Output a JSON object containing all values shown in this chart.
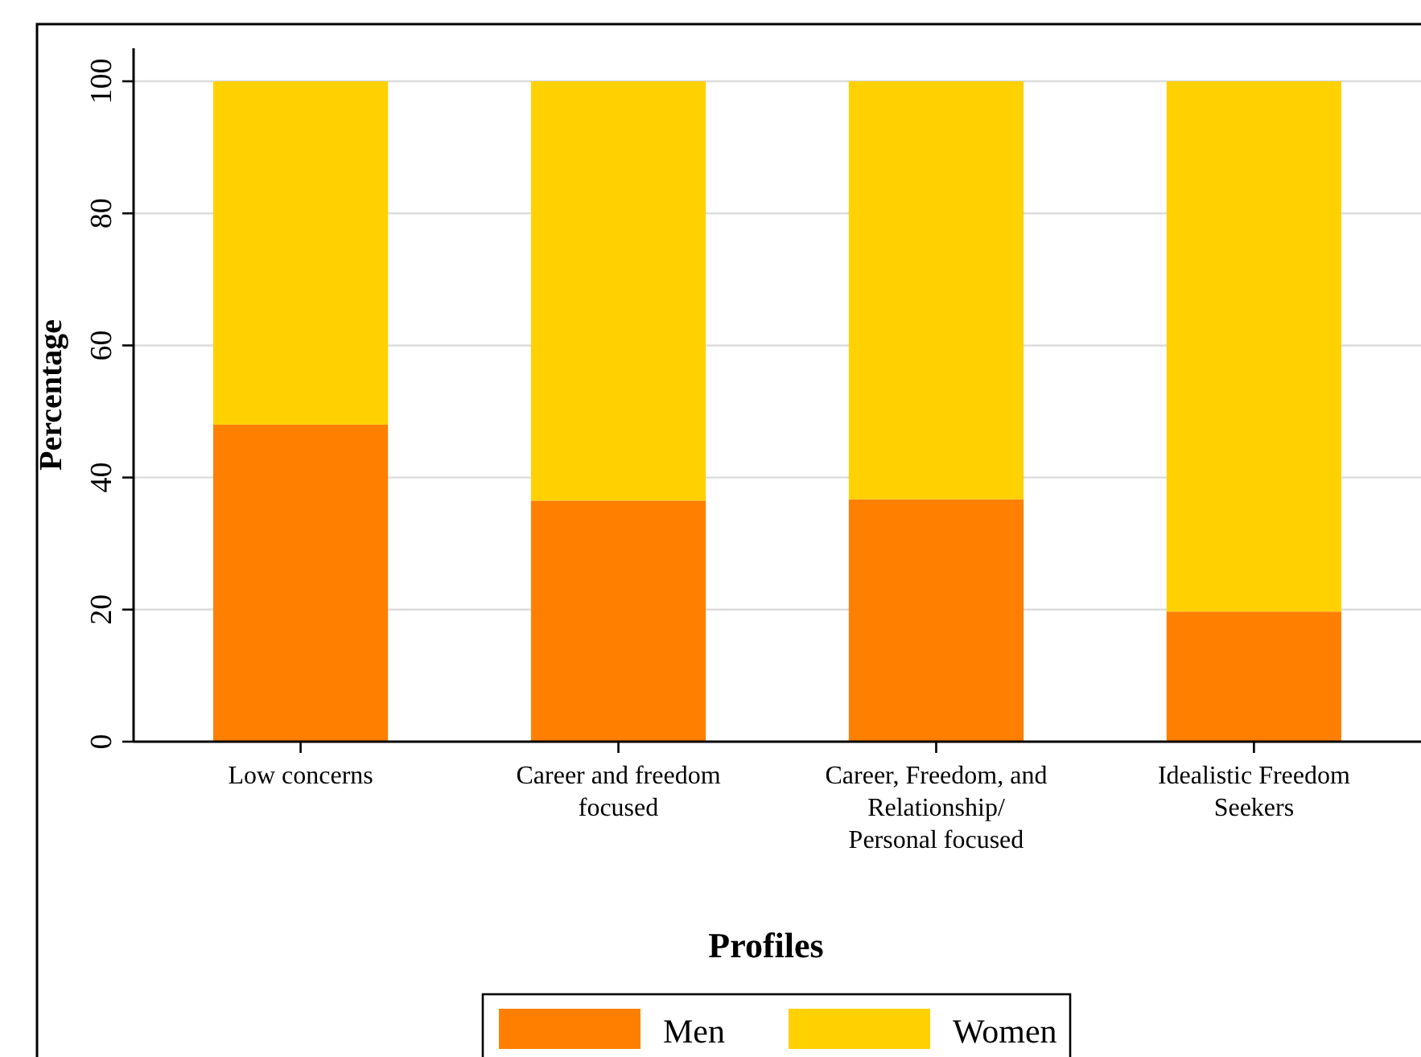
{
  "chart_data": {
    "type": "bar",
    "stacked": true,
    "xlabel": "Profiles",
    "ylabel": "Percentage",
    "categories": [
      "Low concerns",
      "Career and freedom focused",
      "Career, Freedom, and Relationship/ Personal focused",
      "Idealistic Freedom Seekers"
    ],
    "series": [
      {
        "name": "Men",
        "color": "#ff7f00",
        "values": [
          48,
          36.5,
          36.7,
          19.7
        ]
      },
      {
        "name": "Women",
        "color": "#ffd100",
        "values": [
          52,
          63.5,
          63.3,
          80.3
        ]
      }
    ],
    "ylim": [
      0,
      105
    ],
    "yticks": [
      0,
      20,
      40,
      60,
      80,
      100
    ],
    "grid": "y",
    "legend": "bottom"
  }
}
